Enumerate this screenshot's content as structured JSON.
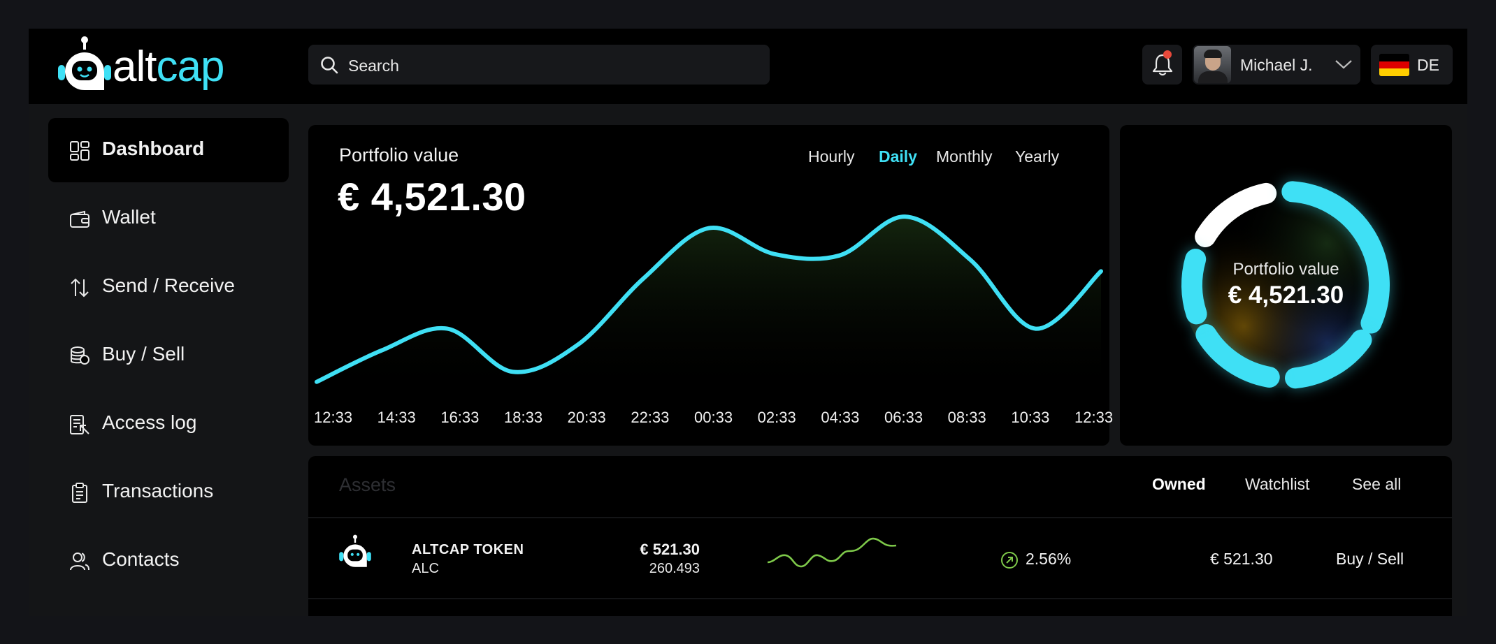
{
  "app": {
    "name_part1": "alt",
    "name_part2": "cap"
  },
  "search": {
    "placeholder": "Search"
  },
  "user": {
    "name": "Michael J.",
    "language": "DE",
    "has_notification": true
  },
  "sidebar": {
    "items": [
      {
        "label": "Dashboard",
        "icon": "dashboard-icon",
        "active": true
      },
      {
        "label": "Wallet",
        "icon": "wallet-icon"
      },
      {
        "label": "Send / Receive",
        "icon": "send-receive-icon"
      },
      {
        "label": "Buy / Sell",
        "icon": "coins-icon"
      },
      {
        "label": "Access log",
        "icon": "access-log-icon"
      },
      {
        "label": "Transactions",
        "icon": "clipboard-icon"
      },
      {
        "label": "Contacts",
        "icon": "users-icon"
      }
    ]
  },
  "portfolio": {
    "label": "Portfolio value",
    "value": "€ 4,521.30",
    "periods": [
      "Hourly",
      "Daily",
      "Monthly",
      "Yearly"
    ],
    "selected_period": "Daily"
  },
  "chart_data": {
    "type": "area",
    "x": [
      "12:33",
      "14:33",
      "16:33",
      "18:33",
      "20:33",
      "22:33",
      "00:33",
      "02:33",
      "04:33",
      "06:33",
      "08:33",
      "10:33",
      "12:33"
    ],
    "values": [
      5,
      27,
      42,
      12,
      31,
      77,
      112,
      94,
      93,
      120,
      90,
      42,
      82
    ],
    "ylim": [
      0,
      140
    ],
    "grid": false,
    "line_color": "#3fe0f5"
  },
  "donut": {
    "label": "Portfolio value",
    "value": "€ 4,521.30",
    "segment_colors": [
      "#ffffff",
      "#3fe0f5"
    ]
  },
  "assets": {
    "title": "Assets",
    "tabs": [
      "Owned",
      "Watchlist",
      "See all"
    ],
    "selected_tab": "Owned",
    "rows": [
      {
        "name": "ALTCAP TOKEN",
        "symbol": "ALC",
        "price": "€ 521.30",
        "amount": "260.493",
        "change": "2.56%",
        "value": "€ 521.30",
        "action": "Buy / Sell",
        "trend": "up"
      }
    ]
  },
  "colors": {
    "accent": "#3fe0f5",
    "positive": "#7ec94a",
    "notification": "#e8493b"
  }
}
